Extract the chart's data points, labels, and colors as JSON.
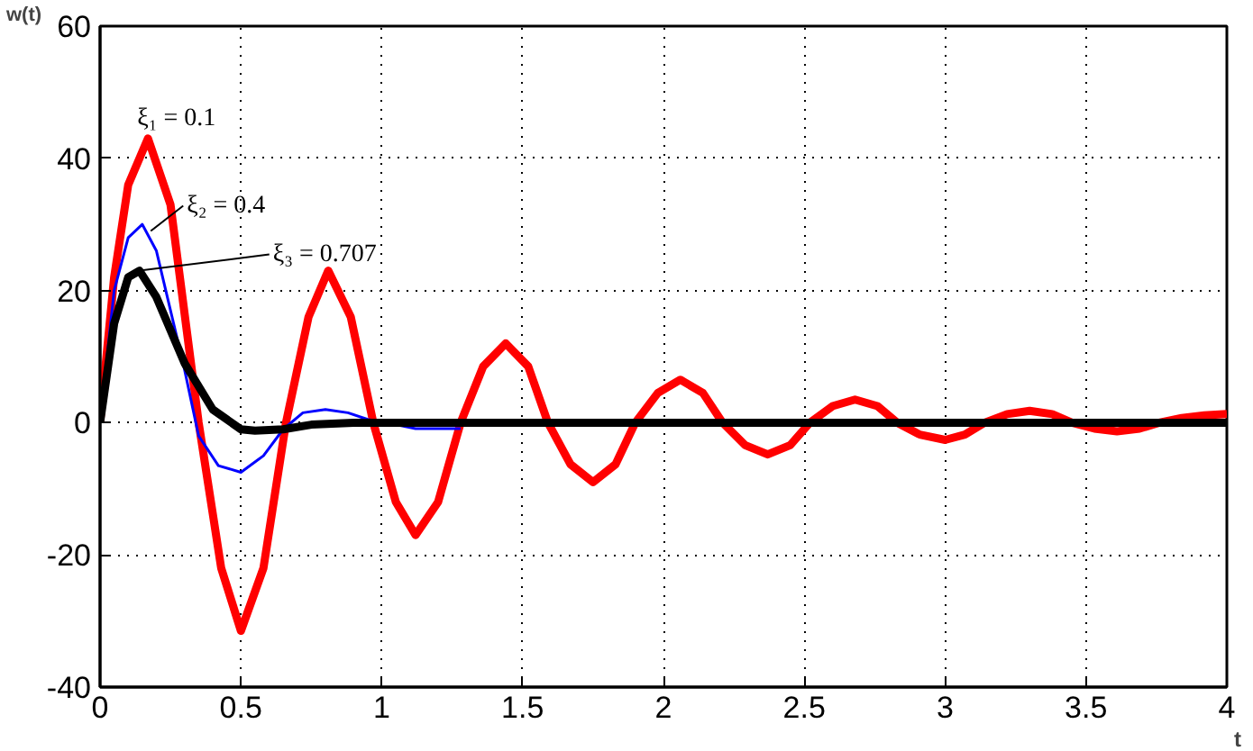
{
  "chart_data": {
    "type": "line",
    "xlabel": "t",
    "ylabel": "w(t)",
    "xlim": [
      0,
      4
    ],
    "ylim": [
      -40,
      60
    ],
    "xticks": [
      0,
      0.5,
      1,
      1.5,
      2,
      2.5,
      3,
      3.5,
      4
    ],
    "yticks": [
      -40,
      -20,
      0,
      20,
      40,
      60
    ],
    "grid": true,
    "marker": "none",
    "line_style": "solid",
    "series": [
      {
        "color": "#ff0000",
        "x": [
          0,
          0.05,
          0.1,
          0.17,
          0.25,
          0.35,
          0.43,
          0.5,
          0.58,
          0.66,
          0.74,
          0.81,
          0.89,
          0.97,
          1.05,
          1.12,
          1.2,
          1.28,
          1.36,
          1.44,
          1.52,
          1.59,
          1.67,
          1.75,
          1.83,
          1.9,
          1.98,
          2.06,
          2.14,
          2.21,
          2.29,
          2.37,
          2.45,
          2.52,
          2.6,
          2.68,
          2.76,
          2.83,
          2.91,
          3.0,
          3.07,
          3.14,
          3.22,
          3.3,
          3.38,
          3.45,
          3.53,
          3.61,
          3.69,
          3.76,
          3.84,
          3.92,
          4.0
        ],
        "values": [
          0,
          22,
          36,
          43,
          33,
          0,
          -22,
          -31.5,
          -22,
          0,
          16,
          23,
          16,
          0,
          -12,
          -17,
          -12,
          0,
          8.5,
          12,
          8.5,
          0,
          -6.3,
          -9,
          -6.3,
          0,
          4.5,
          6.5,
          4.5,
          0,
          -3.4,
          -4.8,
          -3.4,
          0,
          2.5,
          3.5,
          2.5,
          0,
          -1.8,
          -2.6,
          -1.8,
          0,
          1.3,
          1.8,
          1.3,
          0,
          -0.9,
          -1.3,
          -0.9,
          0,
          0.7,
          1.1,
          1.3
        ]
      },
      {
        "color": "#0000ff",
        "x": [
          0,
          0.05,
          0.1,
          0.15,
          0.2,
          0.3,
          0.35,
          0.42,
          0.5,
          0.58,
          0.65,
          0.72,
          0.8,
          0.88,
          0.95,
          1.05,
          1.12,
          1.28
        ],
        "values": [
          0,
          20,
          28,
          30,
          26,
          8,
          -2,
          -6.5,
          -7.5,
          -5,
          -1,
          1.5,
          2,
          1.5,
          0.5,
          -0.3,
          -0.9,
          -0.9
        ]
      },
      {
        "color": "#000000",
        "x": [
          0,
          0.05,
          0.1,
          0.14,
          0.2,
          0.3,
          0.4,
          0.5,
          0.55,
          0.65,
          0.75,
          0.9,
          4.0
        ],
        "values": [
          0,
          15,
          22,
          23,
          19,
          9,
          2,
          -1,
          -1.2,
          -1,
          -0.3,
          0,
          0
        ]
      }
    ],
    "annotations": [
      "ξ₁ = 0.1",
      {
        "text": "ξ₂ = 0.4",
        "x": 0.18,
        "y": 29
      },
      {
        "text": "ξ₃ = 0.707",
        "x": 0.14,
        "y": 23
      }
    ]
  }
}
